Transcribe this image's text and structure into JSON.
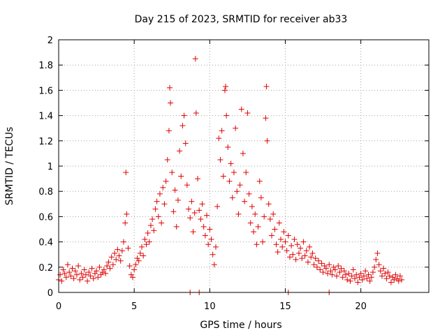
{
  "chart_data": {
    "type": "scatter",
    "title": "Day 215 of 2023, SRMTID for receiver ab33",
    "xlabel": "GPS time / hours",
    "ylabel": "SRMTID / TECUs",
    "xlim": [
      0,
      24.5
    ],
    "ylim": [
      0,
      2
    ],
    "x_ticks": [
      0,
      5,
      10,
      15,
      20
    ],
    "y_ticks": [
      0,
      0.2,
      0.4,
      0.6,
      0.8,
      1,
      1.2,
      1.4,
      1.6,
      1.8,
      2
    ],
    "x_tick_labels": [
      "0",
      "5",
      "10",
      "15",
      "20"
    ],
    "y_tick_labels": [
      "0",
      "0.2",
      "0.4",
      "0.6",
      "0.8",
      "1",
      "1.2",
      "1.4",
      "1.6",
      "1.8",
      "2"
    ],
    "grid": true,
    "marker": "+",
    "marker_color": "#e00000",
    "series": [
      {
        "name": "SRMTID",
        "points": [
          [
            0.0,
            0.1
          ],
          [
            0.1,
            0.14
          ],
          [
            0.2,
            0.09
          ],
          [
            0.3,
            0.18
          ],
          [
            0.4,
            0.15
          ],
          [
            0.5,
            0.12
          ],
          [
            0.6,
            0.22
          ],
          [
            0.7,
            0.16
          ],
          [
            0.8,
            0.13
          ],
          [
            0.9,
            0.19
          ],
          [
            1.0,
            0.11
          ],
          [
            1.1,
            0.17
          ],
          [
            1.2,
            0.14
          ],
          [
            1.3,
            0.21
          ],
          [
            1.4,
            0.1
          ],
          [
            1.5,
            0.15
          ],
          [
            1.6,
            0.12
          ],
          [
            1.7,
            0.18
          ],
          [
            1.8,
            0.14
          ],
          [
            1.9,
            0.09
          ],
          [
            2.0,
            0.16
          ],
          [
            2.1,
            0.13
          ],
          [
            2.2,
            0.19
          ],
          [
            2.3,
            0.11
          ],
          [
            2.4,
            0.15
          ],
          [
            2.5,
            0.17
          ],
          [
            2.6,
            0.12
          ],
          [
            2.7,
            0.2
          ],
          [
            2.8,
            0.14
          ],
          [
            2.9,
            0.16
          ],
          [
            3.0,
            0.18
          ],
          [
            3.1,
            0.15
          ],
          [
            3.2,
            0.21
          ],
          [
            3.3,
            0.24
          ],
          [
            3.4,
            0.19
          ],
          [
            3.5,
            0.28
          ],
          [
            3.6,
            0.22
          ],
          [
            3.7,
            0.31
          ],
          [
            3.8,
            0.26
          ],
          [
            3.9,
            0.34
          ],
          [
            4.0,
            0.29
          ],
          [
            4.1,
            0.25
          ],
          [
            4.2,
            0.33
          ],
          [
            4.3,
            0.4
          ],
          [
            4.4,
            0.55
          ],
          [
            4.45,
            0.95
          ],
          [
            4.5,
            0.62
          ],
          [
            4.6,
            0.35
          ],
          [
            4.7,
            0.21
          ],
          [
            4.8,
            0.14
          ],
          [
            4.9,
            0.12
          ],
          [
            5.0,
            0.18
          ],
          [
            5.1,
            0.22
          ],
          [
            5.2,
            0.27
          ],
          [
            5.3,
            0.25
          ],
          [
            5.4,
            0.31
          ],
          [
            5.5,
            0.36
          ],
          [
            5.6,
            0.29
          ],
          [
            5.7,
            0.42
          ],
          [
            5.8,
            0.38
          ],
          [
            5.9,
            0.47
          ],
          [
            6.0,
            0.4
          ],
          [
            6.1,
            0.53
          ],
          [
            6.2,
            0.58
          ],
          [
            6.3,
            0.49
          ],
          [
            6.4,
            0.66
          ],
          [
            6.5,
            0.72
          ],
          [
            6.6,
            0.6
          ],
          [
            6.7,
            0.78
          ],
          [
            6.8,
            0.55
          ],
          [
            6.9,
            0.83
          ],
          [
            7.0,
            0.7
          ],
          [
            7.1,
            0.88
          ],
          [
            7.2,
            1.05
          ],
          [
            7.3,
            1.28
          ],
          [
            7.35,
            1.62
          ],
          [
            7.4,
            1.5
          ],
          [
            7.5,
            0.95
          ],
          [
            7.6,
            0.64
          ],
          [
            7.7,
            0.81
          ],
          [
            7.8,
            0.52
          ],
          [
            7.9,
            0.73
          ],
          [
            8.0,
            1.12
          ],
          [
            8.1,
            0.92
          ],
          [
            8.2,
            1.32
          ],
          [
            8.3,
            1.4
          ],
          [
            8.4,
            1.18
          ],
          [
            8.5,
            0.85
          ],
          [
            8.6,
            0.66
          ],
          [
            8.7,
            0.59
          ],
          [
            8.8,
            0.72
          ],
          [
            8.9,
            0.48
          ],
          [
            9.0,
            0.63
          ],
          [
            9.05,
            1.85
          ],
          [
            9.1,
            1.42
          ],
          [
            9.2,
            0.9
          ],
          [
            9.3,
            0.65
          ],
          [
            9.4,
            0.58
          ],
          [
            9.5,
            0.7
          ],
          [
            9.6,
            0.52
          ],
          [
            9.7,
            0.45
          ],
          [
            9.8,
            0.61
          ],
          [
            9.9,
            0.38
          ],
          [
            10.0,
            0.5
          ],
          [
            10.1,
            0.42
          ],
          [
            10.2,
            0.3
          ],
          [
            10.3,
            0.22
          ],
          [
            10.4,
            0.36
          ],
          [
            10.5,
            0.68
          ],
          [
            10.6,
            1.22
          ],
          [
            10.7,
            1.05
          ],
          [
            10.8,
            1.28
          ],
          [
            10.9,
            0.92
          ],
          [
            11.0,
            1.6
          ],
          [
            11.05,
            1.63
          ],
          [
            11.1,
            1.4
          ],
          [
            11.2,
            1.15
          ],
          [
            11.3,
            0.88
          ],
          [
            11.4,
            1.02
          ],
          [
            11.5,
            0.75
          ],
          [
            11.6,
            0.95
          ],
          [
            11.7,
            1.3
          ],
          [
            11.8,
            0.8
          ],
          [
            11.9,
            0.62
          ],
          [
            12.0,
            0.85
          ],
          [
            12.1,
            1.45
          ],
          [
            12.2,
            1.1
          ],
          [
            12.3,
            0.72
          ],
          [
            12.4,
            0.95
          ],
          [
            12.5,
            1.42
          ],
          [
            12.6,
            0.78
          ],
          [
            12.7,
            0.55
          ],
          [
            12.8,
            0.68
          ],
          [
            12.9,
            0.48
          ],
          [
            13.0,
            0.62
          ],
          [
            13.1,
            0.38
          ],
          [
            13.2,
            0.52
          ],
          [
            13.3,
            0.88
          ],
          [
            13.4,
            0.75
          ],
          [
            13.5,
            0.4
          ],
          [
            13.6,
            0.6
          ],
          [
            13.7,
            1.38
          ],
          [
            13.75,
            1.63
          ],
          [
            13.8,
            1.2
          ],
          [
            13.9,
            0.7
          ],
          [
            14.0,
            0.58
          ],
          [
            14.1,
            0.45
          ],
          [
            14.2,
            0.62
          ],
          [
            14.3,
            0.5
          ],
          [
            14.4,
            0.38
          ],
          [
            14.5,
            0.32
          ],
          [
            14.6,
            0.55
          ],
          [
            14.7,
            0.42
          ],
          [
            14.8,
            0.36
          ],
          [
            14.9,
            0.48
          ],
          [
            15.0,
            0.4
          ],
          [
            15.1,
            0.33
          ],
          [
            15.2,
            0.45
          ],
          [
            15.3,
            0.28
          ],
          [
            15.4,
            0.37
          ],
          [
            15.5,
            0.3
          ],
          [
            15.6,
            0.42
          ],
          [
            15.7,
            0.26
          ],
          [
            15.8,
            0.38
          ],
          [
            15.9,
            0.31
          ],
          [
            16.0,
            0.35
          ],
          [
            16.1,
            0.27
          ],
          [
            16.2,
            0.4
          ],
          [
            16.3,
            0.29
          ],
          [
            16.4,
            0.33
          ],
          [
            16.5,
            0.24
          ],
          [
            16.6,
            0.36
          ],
          [
            16.7,
            0.28
          ],
          [
            16.8,
            0.31
          ],
          [
            16.9,
            0.22
          ],
          [
            17.0,
            0.27
          ],
          [
            17.1,
            0.2
          ],
          [
            17.2,
            0.25
          ],
          [
            17.3,
            0.18
          ],
          [
            17.4,
            0.23
          ],
          [
            17.5,
            0.16
          ],
          [
            17.6,
            0.21
          ],
          [
            17.7,
            0.19
          ],
          [
            17.8,
            0.15
          ],
          [
            17.9,
            0.22
          ],
          [
            18.0,
            0.17
          ],
          [
            18.1,
            0.14
          ],
          [
            18.2,
            0.2
          ],
          [
            18.3,
            0.18
          ],
          [
            18.4,
            0.13
          ],
          [
            18.5,
            0.21
          ],
          [
            18.6,
            0.16
          ],
          [
            18.7,
            0.19
          ],
          [
            18.8,
            0.12
          ],
          [
            18.9,
            0.17
          ],
          [
            19.0,
            0.14
          ],
          [
            19.1,
            0.1
          ],
          [
            19.2,
            0.15
          ],
          [
            19.3,
            0.09
          ],
          [
            19.4,
            0.13
          ],
          [
            19.5,
            0.18
          ],
          [
            19.6,
            0.11
          ],
          [
            19.7,
            0.14
          ],
          [
            19.8,
            0.08
          ],
          [
            19.9,
            0.12
          ],
          [
            20.0,
            0.15
          ],
          [
            20.1,
            0.1
          ],
          [
            20.2,
            0.13
          ],
          [
            20.3,
            0.17
          ],
          [
            20.4,
            0.11
          ],
          [
            20.5,
            0.14
          ],
          [
            20.6,
            0.09
          ],
          [
            20.7,
            0.12
          ],
          [
            20.8,
            0.16
          ],
          [
            20.9,
            0.2
          ],
          [
            21.0,
            0.26
          ],
          [
            21.1,
            0.31
          ],
          [
            21.2,
            0.22
          ],
          [
            21.3,
            0.17
          ],
          [
            21.4,
            0.13
          ],
          [
            21.5,
            0.19
          ],
          [
            21.6,
            0.15
          ],
          [
            21.7,
            0.11
          ],
          [
            21.8,
            0.16
          ],
          [
            21.9,
            0.13
          ],
          [
            22.0,
            0.08
          ],
          [
            22.1,
            0.12
          ],
          [
            22.2,
            0.1
          ],
          [
            22.3,
            0.14
          ],
          [
            22.4,
            0.11
          ],
          [
            22.5,
            0.09
          ],
          [
            22.6,
            0.13
          ],
          [
            22.7,
            0.1
          ],
          [
            8.7,
            0.0
          ],
          [
            9.3,
            0.0
          ],
          [
            15.2,
            0.0
          ],
          [
            17.9,
            0.0
          ]
        ]
      }
    ]
  }
}
